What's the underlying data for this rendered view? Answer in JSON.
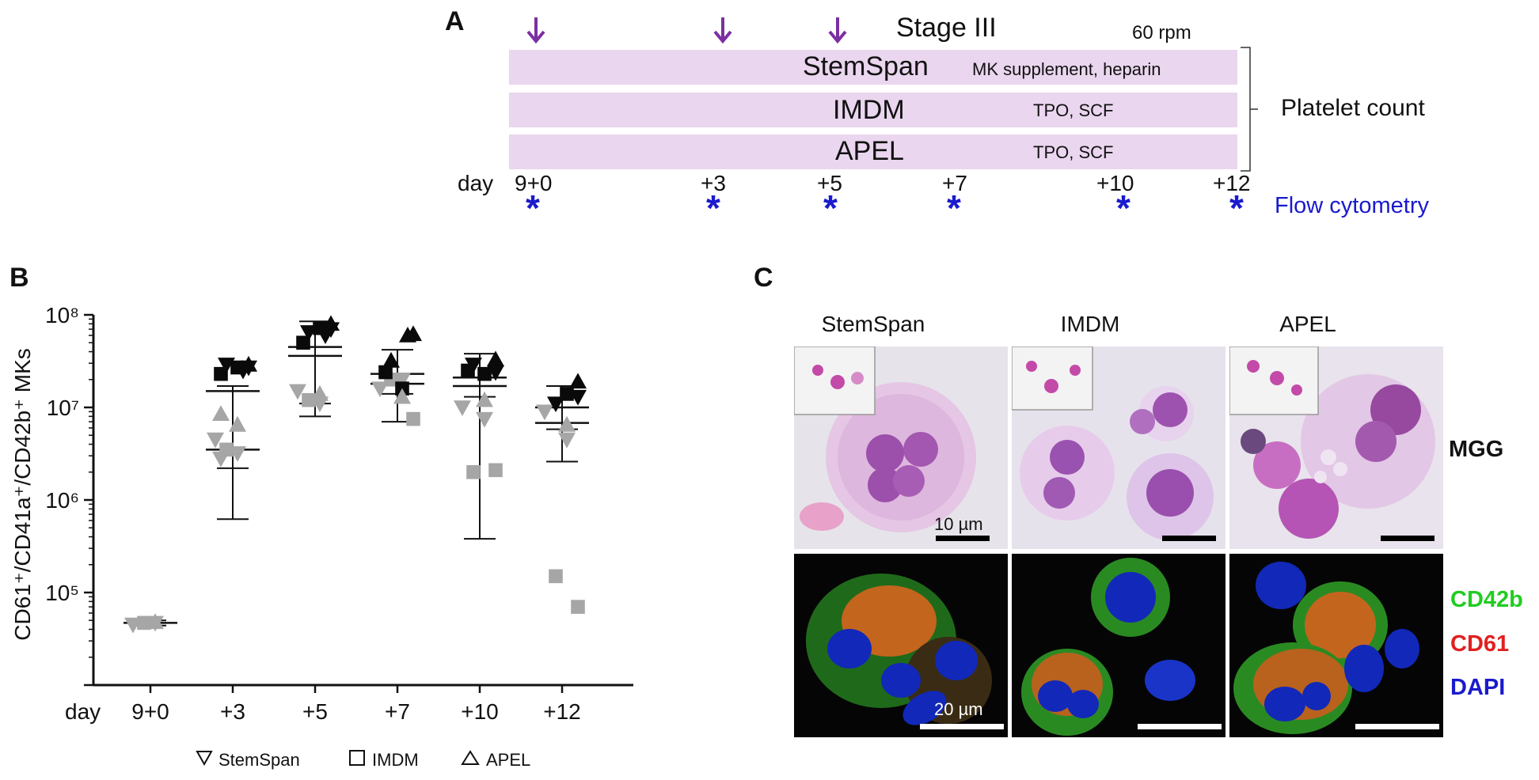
{
  "panelA": {
    "letter": "A",
    "stage": "Stage III",
    "rpm": "60 rpm",
    "media": [
      {
        "name": "StemSpan",
        "supplement": "MK supplement, heparin"
      },
      {
        "name": "IMDM",
        "supplement": "TPO, SCF"
      },
      {
        "name": "APEL",
        "supplement": "TPO, SCF"
      }
    ],
    "platelet_count": "Platelet count",
    "day_label": "day",
    "days": [
      "9+0",
      "+3",
      "+5",
      "+7",
      "+10",
      "+12"
    ],
    "flow_label": "Flow cytometry",
    "arrow_color": "#7b2fa1",
    "star_color": "#1a1acd"
  },
  "panelB": {
    "letter": "B",
    "legend": [
      "StemSpan",
      "IMDM",
      "APEL"
    ]
  },
  "panelC": {
    "letter": "C",
    "columns": [
      "StemSpan",
      "IMDM",
      "APEL"
    ],
    "mgg_label": "MGG",
    "fluor_labels": [
      {
        "text": "CD42b",
        "color": "#22cc22"
      },
      {
        "text": "CD61",
        "color": "#e02020"
      },
      {
        "text": "DAPI",
        "color": "#1a1acd"
      }
    ],
    "scale_top": "10 µm",
    "scale_bottom": "20 µm"
  },
  "chart_data": {
    "type": "scatter",
    "title": "",
    "ylabel": "CD61⁺/CD41a⁺/CD42b⁺ MKs",
    "xlabel": "day",
    "yscale": "log",
    "ylim": [
      10000,
      100000000
    ],
    "ytick_labels": [
      "10⁵",
      "10⁶",
      "10⁷",
      "10⁸"
    ],
    "categories": [
      "9+0",
      "+3",
      "+5",
      "+7",
      "+10",
      "+12"
    ],
    "series": [
      {
        "name": "StemSpan",
        "marker": "triangle-down",
        "black": [
          [],
          [
            29000000.0,
            27000000.0,
            25000000.0
          ],
          [
            65000000.0,
            70000000.0,
            60000000.0
          ],
          [],
          [
            29000000.0,
            24000000.0
          ],
          [
            11000000.0,
            13000000.0
          ]
        ],
        "gray": [
          [
            45000,
            47000
          ],
          [
            4500000.0,
            3200000.0,
            2800000.0
          ],
          [
            15000000.0,
            11000000.0
          ],
          [
            16000000.0,
            20000000.0
          ],
          [
            10000000.0,
            7500000.0
          ],
          [
            9000000.0,
            4500000.0
          ]
        ]
      },
      {
        "name": "IMDM",
        "marker": "square",
        "black": [
          [],
          [
            27000000.0,
            23000000.0
          ],
          [
            72000000.0,
            50000000.0
          ],
          [
            16000000.0,
            24000000.0
          ],
          [
            23000000.0,
            25000000.0
          ],
          [
            14000000.0
          ]
        ],
        "gray": [
          [
            47000
          ],
          [
            3500000.0
          ],
          [
            12000000.0
          ],
          [
            20000000.0,
            7500000.0
          ],
          [
            2000000.0,
            2100000.0
          ],
          [
            150000,
            70000
          ]
        ]
      },
      {
        "name": "APEL",
        "marker": "triangle-up",
        "black": [
          [],
          [
            29000000.0
          ],
          [
            80000000.0
          ],
          [
            62000000.0,
            60000000.0,
            32000000.0
          ],
          [
            33000000.0
          ],
          [
            19000000.0
          ]
        ],
        "gray": [
          [
            48000
          ],
          [
            6500000.0,
            8500000.0
          ],
          [
            14000000.0
          ],
          [
            13000000.0
          ],
          [
            12000000.0
          ],
          [
            6500000.0
          ]
        ]
      }
    ],
    "mean_sd": [
      {
        "mean": 47000,
        "low": 44000,
        "high": 50000
      },
      {
        "mean": 15000000.0,
        "low": 620000,
        "high": 17000000.0,
        "mean2": 3500000.0,
        "low2": 2200000.0
      },
      {
        "mean": 45000000.0,
        "low": 8000000.0,
        "high": 85000000.0,
        "mean2": 36000000.0,
        "low2": 11000000.0
      },
      {
        "mean": 23000000.0,
        "low": 7000000.0,
        "high": 42000000.0,
        "mean2": 18000000.0,
        "low2": 14000000.0
      },
      {
        "mean": 21000000.0,
        "low": 380000,
        "high": 38000000.0,
        "mean2": 17000000.0,
        "low2": 13000000.0
      },
      {
        "mean": 10000000.0,
        "low": 2600000.0,
        "high": 17000000.0,
        "mean2": 6800000.0,
        "low2": 5800000.0
      }
    ]
  }
}
